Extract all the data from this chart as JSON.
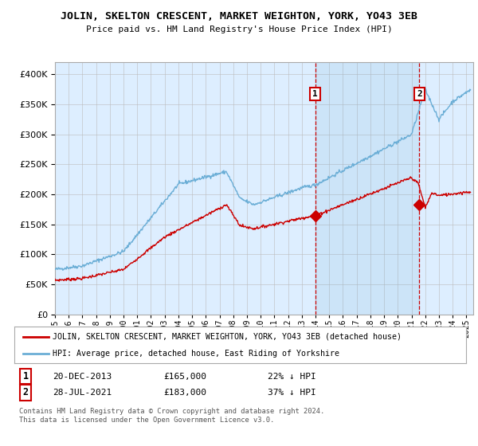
{
  "title": "JOLIN, SKELTON CRESCENT, MARKET WEIGHTON, YORK, YO43 3EB",
  "subtitle": "Price paid vs. HM Land Registry's House Price Index (HPI)",
  "legend_line1": "JOLIN, SKELTON CRESCENT, MARKET WEIGHTON, YORK, YO43 3EB (detached house)",
  "legend_line2": "HPI: Average price, detached house, East Riding of Yorkshire",
  "annotation1_date": "20-DEC-2013",
  "annotation1_price": "£165,000",
  "annotation1_hpi": "22% ↓ HPI",
  "annotation2_date": "28-JUL-2021",
  "annotation2_price": "£183,000",
  "annotation2_hpi": "37% ↓ HPI",
  "footer": "Contains HM Land Registry data © Crown copyright and database right 2024.\nThis data is licensed under the Open Government Licence v3.0.",
  "hpi_color": "#6baed6",
  "sale_color": "#cc0000",
  "annotation_color": "#cc0000",
  "background_color": "#ddeeff",
  "grid_color": "#bbbbbb",
  "ylim": [
    0,
    420000
  ],
  "yticks": [
    0,
    50000,
    100000,
    150000,
    200000,
    250000,
    300000,
    350000,
    400000
  ],
  "sale1_year": 2013.97,
  "sale1_value": 165000,
  "sale2_year": 2021.57,
  "sale2_value": 183000
}
